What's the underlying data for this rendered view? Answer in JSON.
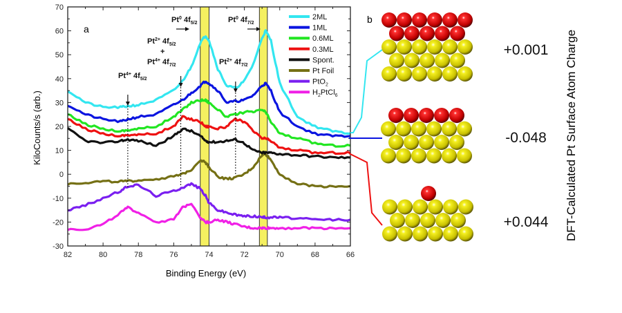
{
  "chart_data": {
    "type": "line",
    "panel_label": "a",
    "xlabel": "Binding Energy (eV)",
    "ylabel": "KiloCounts/s (arb.)",
    "xlim": [
      82,
      66
    ],
    "ylim": [
      -30,
      70
    ],
    "x_ticks": [
      82,
      80,
      78,
      76,
      74,
      72,
      70,
      68,
      66
    ],
    "y_ticks": [
      70,
      60,
      50,
      40,
      30,
      20,
      10,
      0,
      -10,
      -20,
      -30
    ],
    "grid": false,
    "legend_position": "top-right",
    "x": [
      82,
      81,
      80,
      79,
      78.6,
      78,
      77,
      76,
      75.5,
      75,
      74.5,
      74.2,
      74,
      73.5,
      73,
      72.5,
      72,
      71.5,
      71,
      70.8,
      70.5,
      70,
      69,
      68,
      67,
      66
    ],
    "series": [
      {
        "name": "2ML",
        "color": "#33e6f0",
        "values": [
          35,
          30,
          28,
          28,
          28.5,
          29,
          31,
          35,
          39,
          45,
          55,
          58,
          56,
          44,
          37,
          36,
          39,
          46,
          57,
          60,
          56,
          38,
          24,
          20,
          18,
          17
        ]
      },
      {
        "name": "1ML",
        "color": "#0a14e0",
        "values": [
          29,
          25,
          23,
          22,
          23,
          24,
          25,
          29,
          31,
          34,
          37,
          39,
          38,
          35,
          30,
          30.5,
          31,
          33,
          37,
          38,
          35,
          26,
          20,
          17,
          16,
          16
        ]
      },
      {
        "name": "0.6ML",
        "color": "#22e622",
        "values": [
          25,
          21,
          19,
          18,
          18.5,
          19,
          20,
          24,
          27,
          30,
          31,
          31,
          30,
          27,
          24,
          25,
          26,
          26,
          27,
          26,
          22,
          17,
          15,
          13,
          12,
          12
        ]
      },
      {
        "name": "0.3ML",
        "color": "#ee1111",
        "values": [
          23,
          19,
          17,
          16,
          16.5,
          16.5,
          17,
          20,
          24,
          23,
          22,
          20,
          20,
          19,
          20,
          23,
          22,
          18,
          15,
          15,
          14,
          11,
          10,
          9,
          9,
          9
        ]
      },
      {
        "name": "Spont.",
        "color": "#111111",
        "values": [
          19,
          14,
          13,
          14,
          14.5,
          14,
          12,
          16,
          19,
          18,
          16,
          14,
          13.5,
          13.5,
          14,
          14.5,
          13,
          10,
          9,
          9,
          9,
          8.5,
          8,
          7.5,
          7,
          7
        ]
      },
      {
        "name": "Pt Foil",
        "color": "#757015",
        "values": [
          -4,
          -3.5,
          -3,
          -3,
          -3,
          -2.5,
          -2,
          -1,
          0,
          2,
          6,
          5,
          3,
          -1,
          -2,
          -1.5,
          0,
          3,
          8,
          8.5,
          6,
          0,
          -4,
          -5,
          -5,
          -5
        ]
      },
      {
        "name": "PtO2",
        "color": "#7a1ff0",
        "values": [
          -15,
          -13,
          -10,
          -7,
          -5,
          -4.5,
          -9,
          -7,
          -5.5,
          -4,
          -6,
          -9,
          -12,
          -15,
          -16,
          -17,
          -17.5,
          -17.5,
          -18,
          -18,
          -18,
          -18,
          -18.5,
          -19,
          -19,
          -19
        ]
      },
      {
        "name": "H2PtCl6",
        "color": "#f020e6",
        "values": [
          -23,
          -23,
          -21,
          -16,
          -14,
          -16,
          -20,
          -19,
          -14,
          -12,
          -18,
          -20,
          -20,
          -19,
          -20,
          -21,
          -22,
          -22.5,
          -22.5,
          -22.5,
          -22.5,
          -22.5,
          -22.5,
          -22.5,
          -22.5,
          -22.5
        ]
      }
    ],
    "legend_labels": [
      {
        "main": "2ML",
        "sub": "",
        "tail": ""
      },
      {
        "main": "1ML",
        "sub": "",
        "tail": ""
      },
      {
        "main": "0.6ML",
        "sub": "",
        "tail": ""
      },
      {
        "main": "0.3ML",
        "sub": "",
        "tail": ""
      },
      {
        "main": "Spont.",
        "sub": "",
        "tail": ""
      },
      {
        "main": "Pt Foil",
        "sub": "",
        "tail": ""
      },
      {
        "main": "PtO",
        "sub": "2",
        "tail": ""
      },
      {
        "main": "H",
        "sub": "2",
        "tail": "PtCl",
        "sub2": "6"
      }
    ],
    "highlight_bands": [
      [
        74.5,
        74.0
      ],
      [
        71.15,
        70.7
      ]
    ],
    "highlight_color": "#f5f060",
    "markers": [
      {
        "x": 78.6,
        "y_to": -6,
        "label": [
          "Pt4+ 4f5/2"
        ]
      },
      {
        "x": 75.6,
        "y_to": -5,
        "label": [
          "Pt2+ 4f5/2",
          "+",
          "Pt4+ 4f7/2"
        ]
      },
      {
        "x": 72.5,
        "y_to": 0,
        "label": [
          "Pt2+ 4f7/2"
        ]
      }
    ],
    "arrows_right": [
      {
        "label": "Pt0 4f5/2",
        "points_to": 74.5
      },
      {
        "label": "Pt0 4f7/2",
        "points_to": 71.1
      }
    ]
  },
  "panel_b": {
    "label": "b",
    "axis_title": "DFT-Calculated Pt Surface Atom Charge",
    "structures": [
      {
        "value": "+0.001",
        "red_rows": [
          6,
          5
        ],
        "yellow_rows": [
          6,
          5,
          6
        ],
        "link_color": "#33e6f0"
      },
      {
        "value": "-0.048",
        "red_rows": [
          5
        ],
        "yellow_rows": [
          6,
          5,
          6
        ],
        "link_color": "#0a14e0"
      },
      {
        "value": "+0.044",
        "red_rows": [
          1
        ],
        "yellow_rows": [
          6,
          5,
          6
        ],
        "link_color": "#ee1111"
      }
    ]
  },
  "text": {
    "ann_pt4_f52": {
      "a": "Pt",
      "s": "4+",
      "b": " 4f",
      "d": "5/2"
    },
    "ann_pt2_f52": {
      "a": "Pt",
      "s": "2+",
      "b": " 4f",
      "d": "5/2"
    },
    "ann_plus": "+",
    "ann_pt4_f72": {
      "a": "Pt",
      "s": "4+",
      "b": " 4f",
      "d": "7/2"
    },
    "ann_pt2_f72": {
      "a": "Pt",
      "s": "2+",
      "b": " 4f",
      "d": "7/2"
    },
    "ann_pt0_f52": {
      "a": "Pt",
      "s": "0",
      "b": " 4f",
      "d": "5/2"
    },
    "ann_pt0_f72": {
      "a": "Pt",
      "s": "0",
      "b": " 4f",
      "d": "7/2"
    }
  }
}
